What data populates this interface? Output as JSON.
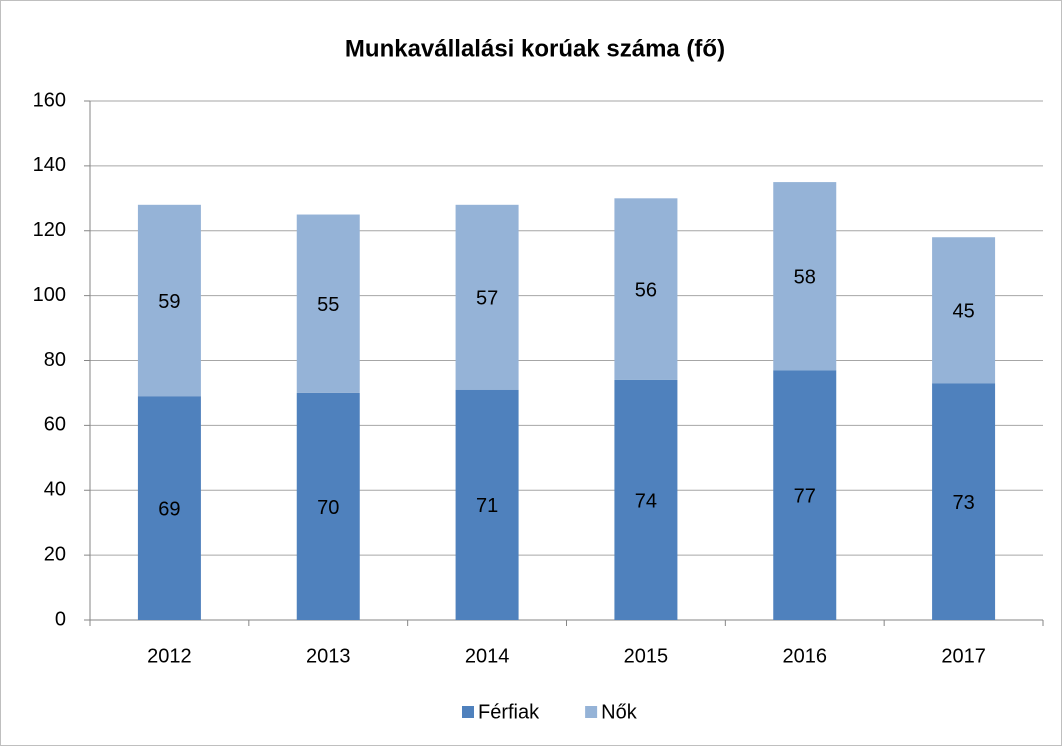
{
  "chart_data": {
    "type": "bar",
    "stacked": true,
    "title": "Munkavállalási korúak száma (fő)",
    "categories": [
      "2012",
      "2013",
      "2014",
      "2015",
      "2016",
      "2017"
    ],
    "series": [
      {
        "name": "Férfiak",
        "color": "#4f81bd",
        "values": [
          69,
          70,
          71,
          74,
          77,
          73
        ]
      },
      {
        "name": "Nők",
        "color": "#95b3d7",
        "values": [
          59,
          55,
          57,
          56,
          58,
          45
        ]
      }
    ],
    "ylim": [
      0,
      160
    ],
    "yticks": [
      0,
      20,
      40,
      60,
      80,
      100,
      120,
      140,
      160
    ],
    "grid": true,
    "legend": "bottom",
    "data_labels": true
  }
}
